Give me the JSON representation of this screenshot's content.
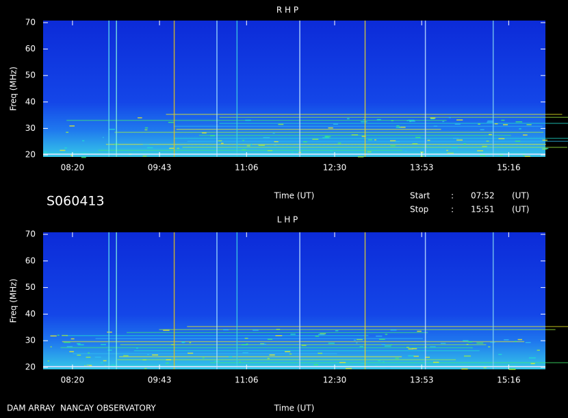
{
  "chart_data": [
    {
      "type": "spectrogram",
      "title": "R H P",
      "y_label": "Freq (MHz)",
      "x_label": "Time (UT)",
      "xlim": [
        472,
        951
      ],
      "xticks": [
        {
          "value": 500,
          "label": "08:20"
        },
        {
          "value": 583,
          "label": "09:43"
        },
        {
          "value": 666,
          "label": "11:06"
        },
        {
          "value": 750,
          "label": "12:30"
        },
        {
          "value": 833,
          "label": "13:53"
        },
        {
          "value": 916,
          "label": "15:16"
        }
      ],
      "ylim": [
        20,
        70
      ],
      "yticks": [
        20,
        30,
        40,
        50,
        60,
        70
      ]
    },
    {
      "type": "spectrogram",
      "title": "L H P",
      "y_label": "Freq (MHz)",
      "x_label": "Time (UT)",
      "xlim": [
        472,
        951
      ],
      "xticks": [
        {
          "value": 500,
          "label": "08:20"
        },
        {
          "value": 583,
          "label": "09:43"
        },
        {
          "value": 666,
          "label": "11:06"
        },
        {
          "value": 750,
          "label": "12:30"
        },
        {
          "value": 833,
          "label": "13:53"
        },
        {
          "value": 916,
          "label": "15:16"
        }
      ],
      "ylim": [
        20,
        70
      ],
      "yticks": [
        20,
        30,
        40,
        50,
        60,
        70
      ]
    }
  ],
  "header": {
    "id": "S060413",
    "start_label": "Start",
    "start_sep": ":",
    "start": "07:52",
    "start_unit": "(UT)",
    "stop_label": "Stop",
    "stop_sep": ":",
    "stop": "15:51",
    "stop_unit": "(UT)"
  },
  "footer": "DAM ARRAY  NANCAY OBSERVATORY"
}
